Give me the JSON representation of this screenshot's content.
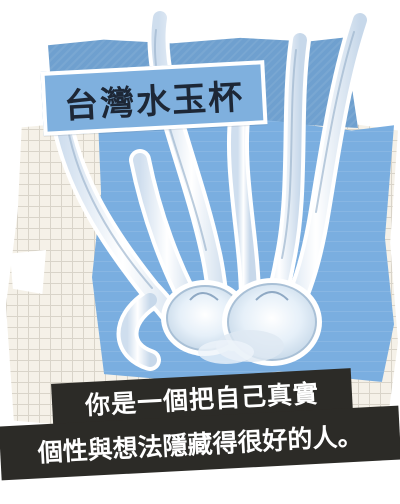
{
  "title": "台灣水玉杯",
  "caption": {
    "line1": "你是一個把自己真實",
    "line2": "個性與想法隱藏得很好的人。"
  },
  "colors": {
    "blue_paper": "#7aaee0",
    "title_blue": "#7fb0de",
    "banner_black": "#2c2b27",
    "grid_paper": "#f5f1e8"
  }
}
